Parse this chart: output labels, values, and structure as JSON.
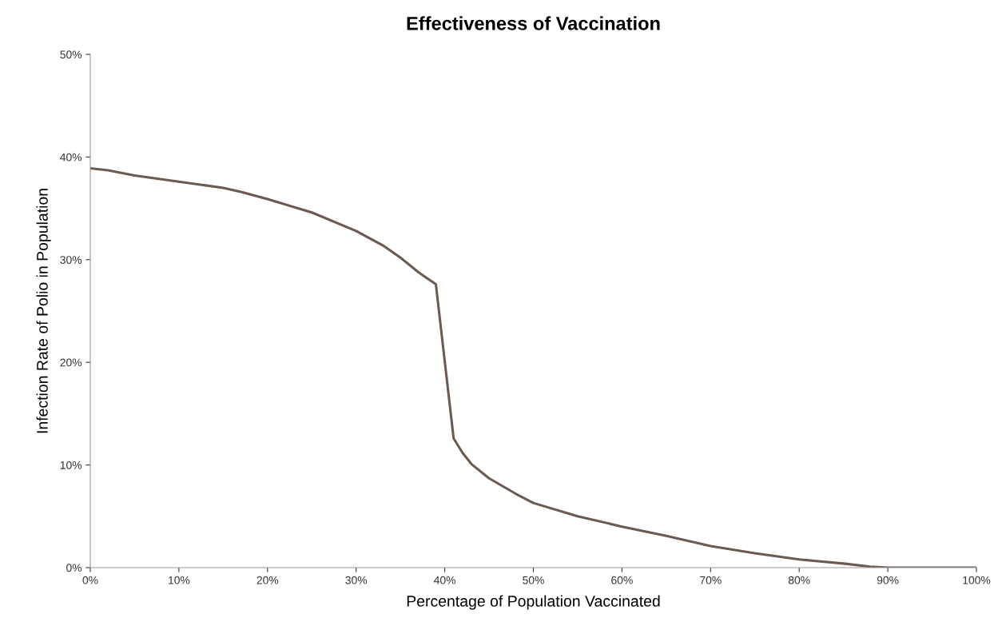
{
  "chart_data": {
    "type": "line",
    "title": "Effectiveness of Vaccination",
    "xlabel": "Percentage of Population Vaccinated",
    "ylabel": "Infection Rate of Polio in Population",
    "x": [
      0,
      2,
      5,
      10,
      15,
      17,
      20,
      25,
      30,
      33,
      35,
      37,
      38,
      39,
      41,
      42,
      43,
      45,
      48,
      50,
      55,
      60,
      65,
      70,
      75,
      80,
      85,
      88,
      90,
      100
    ],
    "series": [
      {
        "color": "#6b5a52",
        "values": [
          38.9,
          38.7,
          38.2,
          37.6,
          37.0,
          36.6,
          35.9,
          34.6,
          32.8,
          31.4,
          30.2,
          28.8,
          28.2,
          27.6,
          12.6,
          11.2,
          10.1,
          8.7,
          7.2,
          6.3,
          5.0,
          4.0,
          3.1,
          2.1,
          1.4,
          0.8,
          0.4,
          0.1,
          0,
          0
        ]
      }
    ],
    "xlim": [
      0,
      100
    ],
    "ylim": [
      0,
      50
    ],
    "xticks": [
      {
        "value": 0,
        "label": "0%"
      },
      {
        "value": 10,
        "label": "10%"
      },
      {
        "value": 20,
        "label": "20%"
      },
      {
        "value": 30,
        "label": "30%"
      },
      {
        "value": 40,
        "label": "40%"
      },
      {
        "value": 50,
        "label": "50%"
      },
      {
        "value": 60,
        "label": "60%"
      },
      {
        "value": 70,
        "label": "70%"
      },
      {
        "value": 80,
        "label": "80%"
      },
      {
        "value": 90,
        "label": "90%"
      },
      {
        "value": 100,
        "label": "100%"
      }
    ],
    "yticks": [
      {
        "value": 0,
        "label": "0%"
      },
      {
        "value": 10,
        "label": "10%"
      },
      {
        "value": 20,
        "label": "20%"
      },
      {
        "value": 30,
        "label": "30%"
      },
      {
        "value": 40,
        "label": "40%"
      },
      {
        "value": 50,
        "label": "50%"
      }
    ],
    "grid": false,
    "legend": false,
    "marker": "none",
    "line_style": "solid"
  }
}
